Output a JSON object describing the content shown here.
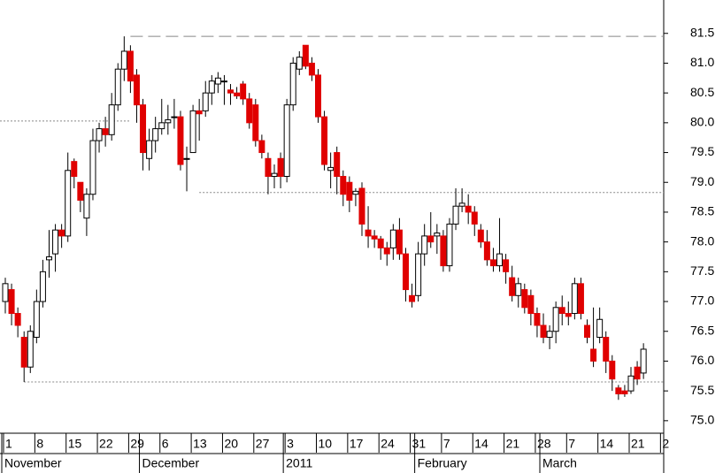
{
  "chart_data": {
    "type": "candlestick",
    "up_color": "#ffffff",
    "down_color": "#e00000",
    "edge_color": "#000000",
    "open": [
      77.0,
      77.2,
      76.8,
      76.4,
      75.9,
      76.4,
      77.0,
      77.7,
      77.8,
      78.2,
      78.1,
      79.35,
      79.0,
      78.4,
      78.8,
      79.7,
      79.9,
      79.8,
      80.3,
      80.9,
      81.2,
      80.8,
      80.3,
      79.4,
      79.7,
      79.9,
      80.0,
      80.1,
      80.1,
      79.4,
      79.5,
      80.2,
      80.2,
      80.5,
      80.65,
      80.7,
      80.55,
      80.5,
      80.65,
      80.4,
      80.3,
      79.7,
      79.4,
      79.1,
      79.4,
      79.1,
      80.3,
      80.9,
      81.3,
      81.0,
      80.8,
      80.1,
      79.2,
      79.5,
      79.1,
      79.0,
      78.8,
      78.9,
      78.2,
      78.1,
      78.05,
      77.9,
      77.9,
      78.2,
      77.8,
      77.1,
      77.1,
      77.8,
      78.1,
      78.1,
      78.1,
      77.6,
      78.3,
      78.6,
      78.6,
      78.5,
      78.2,
      78.0,
      77.7,
      77.6,
      77.7,
      77.4,
      77.1,
      77.2,
      77.1,
      76.8,
      76.6,
      76.4,
      76.5,
      76.9,
      76.8,
      76.8,
      77.3,
      76.6,
      76.2,
      76.4,
      76.4,
      76.0,
      75.55,
      75.5,
      75.5,
      75.9,
      75.8
    ],
    "high": [
      77.4,
      77.3,
      76.9,
      76.5,
      76.6,
      77.2,
      77.7,
      78.2,
      78.3,
      78.3,
      79.5,
      79.4,
      79.0,
      78.9,
      79.9,
      80.0,
      80.1,
      80.5,
      81.0,
      81.45,
      81.3,
      80.9,
      80.4,
      79.9,
      80.1,
      80.4,
      80.3,
      80.4,
      80.2,
      79.6,
      80.3,
      80.4,
      80.7,
      80.8,
      80.85,
      80.8,
      80.65,
      80.6,
      80.7,
      80.5,
      80.4,
      79.8,
      79.5,
      79.3,
      79.5,
      80.4,
      81.1,
      81.2,
      81.3,
      81.1,
      80.9,
      80.2,
      79.5,
      79.6,
      79.2,
      79.1,
      78.9,
      79.0,
      78.6,
      78.2,
      78.1,
      78.0,
      78.3,
      78.4,
      77.9,
      77.3,
      78.0,
      78.3,
      78.5,
      78.3,
      78.2,
      78.4,
      78.9,
      78.9,
      78.8,
      78.6,
      78.3,
      78.2,
      77.9,
      78.4,
      77.8,
      77.6,
      77.4,
      77.3,
      77.2,
      76.9,
      76.8,
      76.6,
      77.0,
      77.1,
      77.0,
      77.4,
      77.4,
      76.7,
      76.9,
      76.9,
      76.5,
      76.1,
      75.6,
      75.6,
      75.9,
      76.0,
      76.3
    ],
    "low": [
      76.8,
      76.6,
      76.4,
      75.65,
      75.8,
      76.3,
      76.9,
      77.4,
      77.5,
      77.9,
      78.0,
      78.9,
      78.5,
      78.1,
      78.7,
      79.5,
      79.6,
      79.7,
      80.2,
      80.7,
      80.5,
      80.0,
      79.2,
      79.2,
      79.5,
      79.8,
      79.8,
      79.9,
      79.2,
      78.85,
      79.5,
      79.7,
      80.1,
      80.3,
      80.5,
      80.3,
      80.3,
      80.4,
      80.3,
      79.9,
      79.6,
      79.4,
      78.8,
      78.9,
      78.9,
      79.0,
      80.2,
      80.8,
      80.9,
      80.7,
      80.0,
      79.2,
      78.9,
      78.8,
      78.6,
      78.5,
      78.6,
      78.1,
      77.9,
      77.9,
      77.7,
      77.6,
      77.7,
      77.7,
      77.0,
      76.9,
      77.0,
      77.6,
      77.9,
      77.8,
      77.5,
      77.5,
      78.2,
      78.5,
      78.3,
      78.1,
      77.9,
      77.6,
      77.5,
      77.5,
      77.3,
      77.0,
      76.9,
      76.8,
      76.6,
      76.4,
      76.3,
      76.2,
      76.3,
      76.6,
      76.6,
      76.7,
      76.7,
      76.3,
      75.9,
      76.3,
      75.8,
      75.5,
      75.35,
      75.4,
      75.45,
      75.6,
      75.7
    ],
    "close": [
      77.3,
      76.8,
      76.6,
      75.9,
      76.5,
      77.0,
      77.5,
      77.75,
      78.2,
      78.1,
      79.2,
      79.1,
      78.7,
      78.8,
      79.7,
      79.9,
      79.8,
      80.3,
      80.9,
      81.2,
      80.7,
      80.3,
      79.5,
      79.7,
      79.9,
      80.0,
      80.05,
      80.1,
      79.3,
      79.4,
      80.2,
      80.15,
      80.5,
      80.7,
      80.75,
      80.7,
      80.5,
      80.45,
      80.4,
      80.0,
      79.7,
      79.5,
      79.1,
      79.15,
      79.1,
      80.3,
      81.0,
      81.1,
      80.95,
      80.8,
      80.1,
      79.3,
      79.25,
      79.1,
      78.8,
      78.7,
      78.85,
      78.3,
      78.1,
      78.05,
      77.9,
      77.8,
      78.2,
      77.8,
      77.2,
      77.0,
      77.8,
      78.1,
      78.0,
      78.15,
      77.6,
      78.3,
      78.6,
      78.65,
      78.5,
      78.3,
      78.0,
      77.7,
      77.6,
      77.8,
      77.5,
      77.1,
      77.3,
      76.9,
      76.8,
      76.6,
      76.4,
      76.5,
      76.9,
      76.8,
      76.75,
      77.3,
      76.8,
      76.4,
      76.0,
      76.7,
      76.0,
      75.7,
      75.45,
      75.45,
      75.75,
      75.7,
      76.2
    ],
    "x_tick_labels": [
      {
        "value": 0,
        "label": "1"
      },
      {
        "value": 5,
        "label": "8"
      },
      {
        "value": 10,
        "label": "15"
      },
      {
        "value": 15,
        "label": "22"
      },
      {
        "value": 20,
        "label": "29"
      },
      {
        "value": 25,
        "label": "6"
      },
      {
        "value": 30,
        "label": "13"
      },
      {
        "value": 35,
        "label": "20"
      },
      {
        "value": 40,
        "label": "27"
      },
      {
        "value": 45,
        "label": "3"
      },
      {
        "value": 50,
        "label": "10"
      },
      {
        "value": 55,
        "label": "17"
      },
      {
        "value": 60,
        "label": "24"
      },
      {
        "value": 65,
        "label": "31"
      },
      {
        "value": 70,
        "label": "7"
      },
      {
        "value": 75,
        "label": "14"
      },
      {
        "value": 80,
        "label": "21"
      },
      {
        "value": 85,
        "label": "28"
      },
      {
        "value": 90,
        "label": "7"
      },
      {
        "value": 95,
        "label": "14"
      },
      {
        "value": 100,
        "label": "21"
      },
      {
        "value": 105,
        "label": "2"
      }
    ],
    "month_labels": [
      {
        "value": 0,
        "label": "November"
      },
      {
        "value": 22,
        "label": "December"
      },
      {
        "value": 45,
        "label": "2011"
      },
      {
        "value": 66,
        "label": "February"
      },
      {
        "value": 86,
        "label": "March"
      }
    ],
    "ylim": [
      74.79,
      82.06
    ],
    "yticks": [
      {
        "value": 75,
        "label": "75.0"
      },
      75.5,
      {
        "value": 76,
        "label": "76.0"
      },
      76.5,
      {
        "value": 77,
        "label": "77.0"
      },
      77.5,
      {
        "value": 78,
        "label": "78.0"
      },
      78.5,
      {
        "value": 79,
        "label": "79.0"
      },
      79.5,
      {
        "value": 80,
        "label": "80.0"
      },
      80.5,
      {
        "value": 81,
        "label": "81.0"
      },
      81.5
    ],
    "reference_lines": [
      {
        "value": 81.45,
        "start": 20,
        "style": "dashed"
      },
      {
        "value": 80.03,
        "end": 20,
        "style": "dotted"
      },
      {
        "value": 78.83,
        "start": 31,
        "style": "dotted"
      },
      {
        "value": 75.65,
        "start": 3,
        "style": "dotted"
      }
    ]
  }
}
